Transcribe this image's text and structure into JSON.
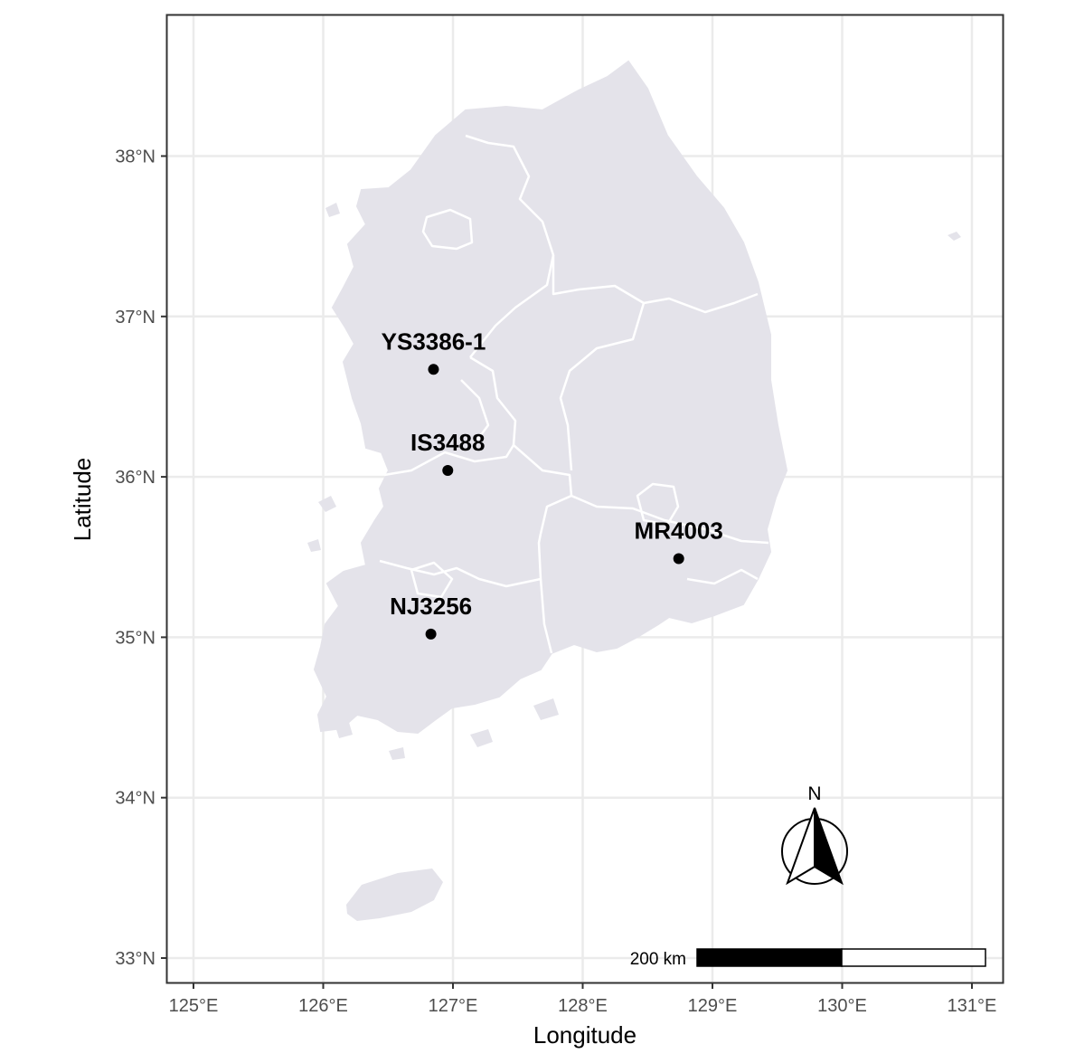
{
  "map": {
    "x_axis": {
      "title": "Longitude",
      "ticks": [
        {
          "value": 125,
          "label": "125°E"
        },
        {
          "value": 126,
          "label": "126°E"
        },
        {
          "value": 127,
          "label": "127°E"
        },
        {
          "value": 128,
          "label": "128°E"
        },
        {
          "value": 129,
          "label": "129°E"
        },
        {
          "value": 130,
          "label": "130°E"
        },
        {
          "value": 131,
          "label": "131°E"
        }
      ]
    },
    "y_axis": {
      "title": "Latitude",
      "ticks": [
        {
          "value": 33,
          "label": "33°N"
        },
        {
          "value": 34,
          "label": "34°N"
        },
        {
          "value": 35,
          "label": "35°N"
        },
        {
          "value": 36,
          "label": "36°N"
        },
        {
          "value": 37,
          "label": "37°N"
        },
        {
          "value": 38,
          "label": "38°N"
        }
      ]
    },
    "sites": [
      {
        "name": "YS3386-1",
        "lon": 126.85,
        "lat": 36.67
      },
      {
        "name": "IS3488",
        "lon": 126.96,
        "lat": 36.04
      },
      {
        "name": "MR4003",
        "lon": 128.74,
        "lat": 35.49
      },
      {
        "name": "NJ3256",
        "lon": 126.83,
        "lat": 35.02
      }
    ],
    "scale_bar": {
      "label": "200 km"
    },
    "north_arrow": {
      "label": "N"
    },
    "colors": {
      "land": "#e4e3ea",
      "borders": "#ffffff",
      "grid": "#ebebeb",
      "panel_border": "#333333",
      "points": "#000000"
    }
  }
}
